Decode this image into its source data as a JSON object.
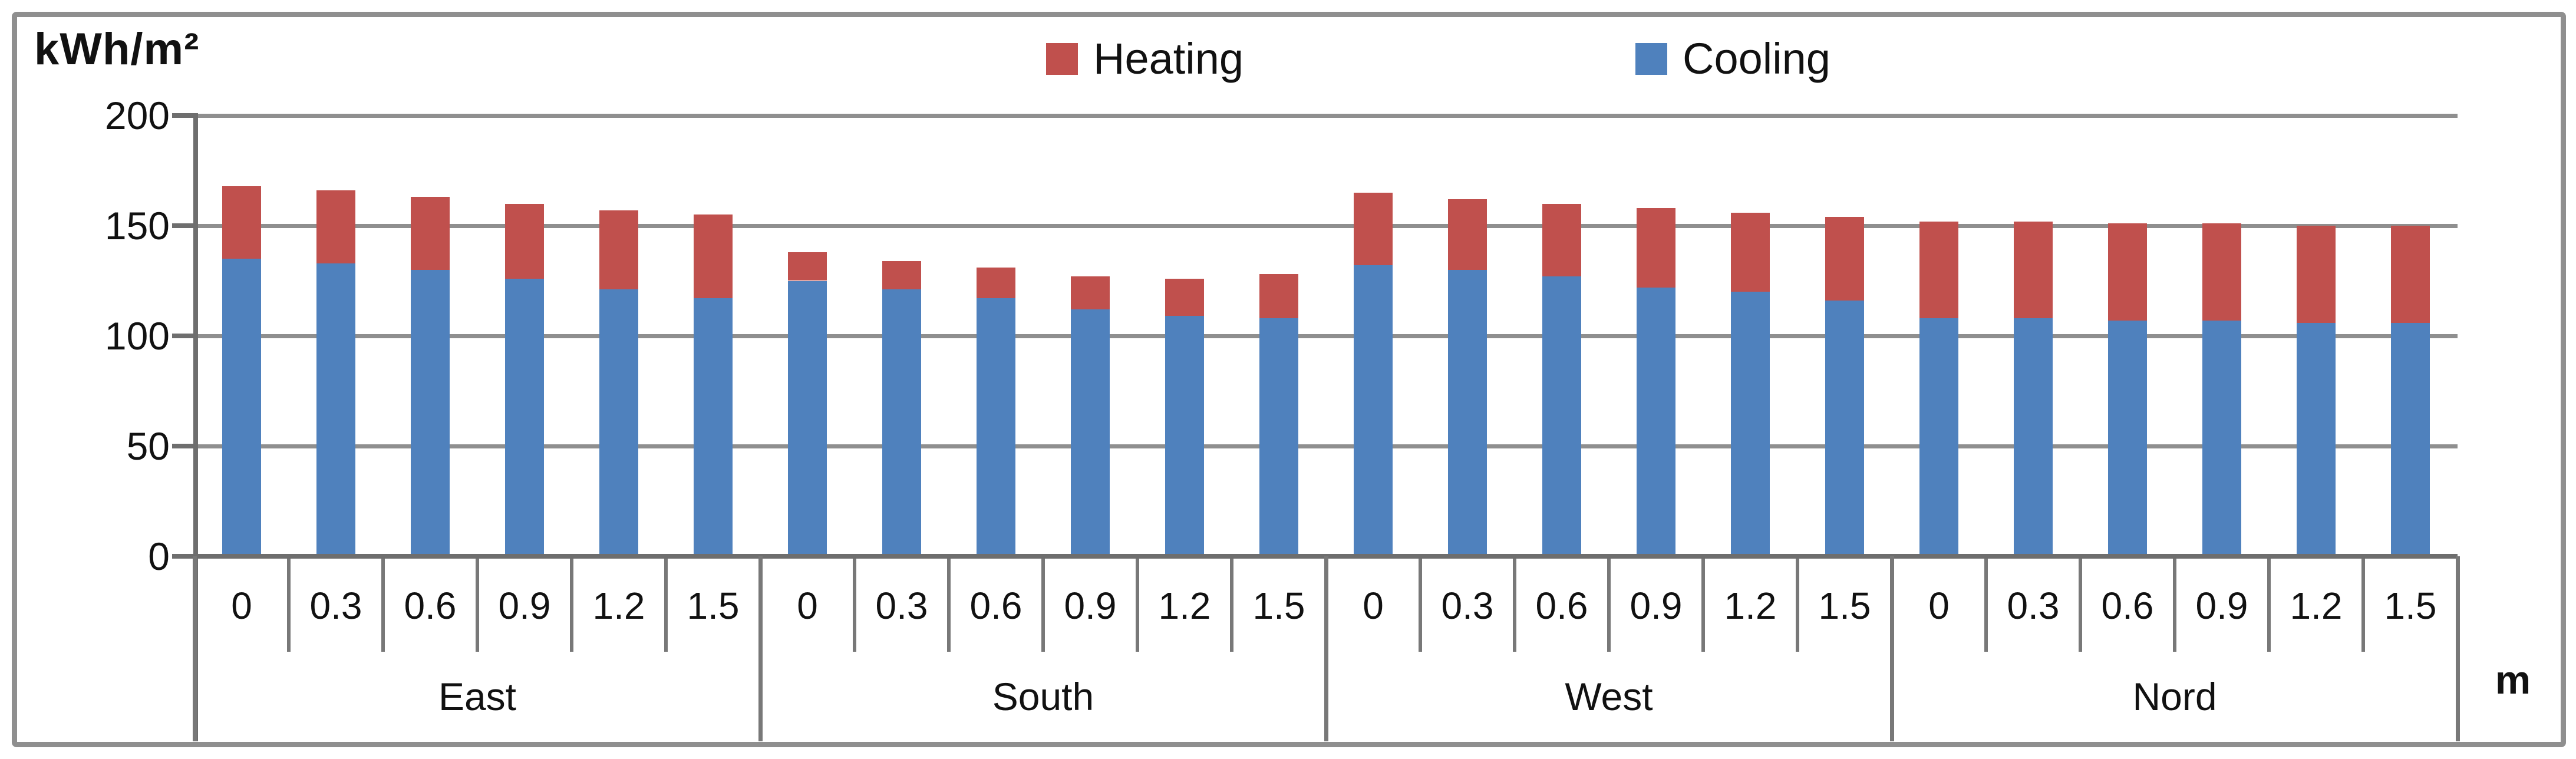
{
  "title": "kWh/m²",
  "unit_label": "m",
  "legend": [
    {
      "label": "Heating",
      "color": "#C0504D"
    },
    {
      "label": "Cooling",
      "color": "#4F81BD"
    }
  ],
  "colors": {
    "heating": "#C0504D",
    "cooling": "#4F81BD",
    "gridline": "#8f8f8f",
    "axis": "#6e6e6e",
    "table_line": "#787878",
    "text": "#111111"
  },
  "chart_data": {
    "type": "bar",
    "stacked": true,
    "title": "",
    "ylabel": "kWh/m²",
    "xlabel": "m",
    "ylim": [
      0,
      200
    ],
    "yticks": [
      0,
      50,
      100,
      150,
      200
    ],
    "grid": true,
    "legend_position": "top",
    "groups": [
      "East",
      "South",
      "West",
      "Nord"
    ],
    "categories": [
      "0",
      "0.3",
      "0.6",
      "0.9",
      "1.2",
      "1.5"
    ],
    "series": [
      {
        "name": "Cooling",
        "color": "#4F81BD",
        "values": [
          [
            135,
            133,
            130,
            126,
            121,
            117
          ],
          [
            125,
            121,
            117,
            112,
            109,
            108
          ],
          [
            132,
            130,
            127,
            122,
            120,
            116
          ],
          [
            108,
            108,
            107,
            107,
            106,
            106
          ]
        ]
      },
      {
        "name": "Heating",
        "color": "#C0504D",
        "values": [
          [
            33,
            33,
            33,
            34,
            36,
            38
          ],
          [
            13,
            13,
            14,
            15,
            17,
            20
          ],
          [
            33,
            32,
            33,
            36,
            36,
            38
          ],
          [
            44,
            44,
            44,
            44,
            44,
            44
          ]
        ]
      }
    ]
  }
}
